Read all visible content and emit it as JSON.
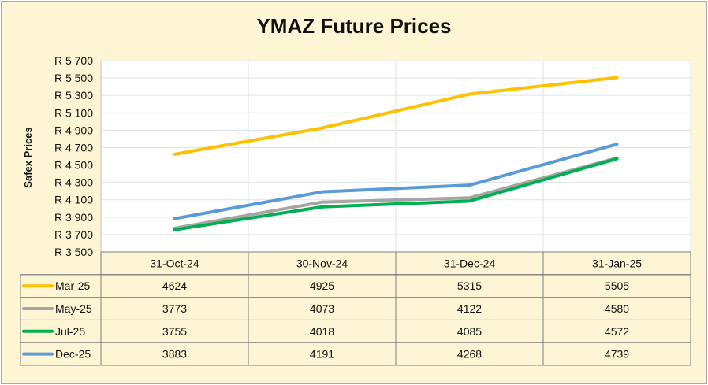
{
  "chart_data": {
    "type": "line",
    "title": "YMAZ Future Prices",
    "xlabel": "",
    "ylabel": "Safex Prices",
    "ylim": [
      3500,
      5700
    ],
    "yticks": [
      3500,
      3700,
      3900,
      4100,
      4300,
      4500,
      4700,
      4900,
      5100,
      5300,
      5500,
      5700
    ],
    "ytick_labels": [
      "R 3 500",
      "R 3 700",
      "R 3 900",
      "R 4 100",
      "R 4 300",
      "R 4 500",
      "R 4 700",
      "R 4 900",
      "R 5 100",
      "R 5 300",
      "R 5 500",
      "R 5 700"
    ],
    "categories": [
      "31-Oct-24",
      "30-Nov-24",
      "31-Dec-24",
      "31-Jan-25"
    ],
    "grid": true,
    "legend": "data-table",
    "series": [
      {
        "name": "Mar-25",
        "color": "#ffc000",
        "values": [
          4624,
          4925,
          5315,
          5505
        ]
      },
      {
        "name": "May-25",
        "color": "#a5a5a5",
        "values": [
          3773,
          4073,
          4122,
          4580
        ]
      },
      {
        "name": "Jul-25",
        "color": "#00b050",
        "values": [
          3755,
          4018,
          4085,
          4572
        ]
      },
      {
        "name": "Dec-25",
        "color": "#5b9bd5",
        "values": [
          3883,
          4191,
          4268,
          4739
        ]
      }
    ]
  }
}
